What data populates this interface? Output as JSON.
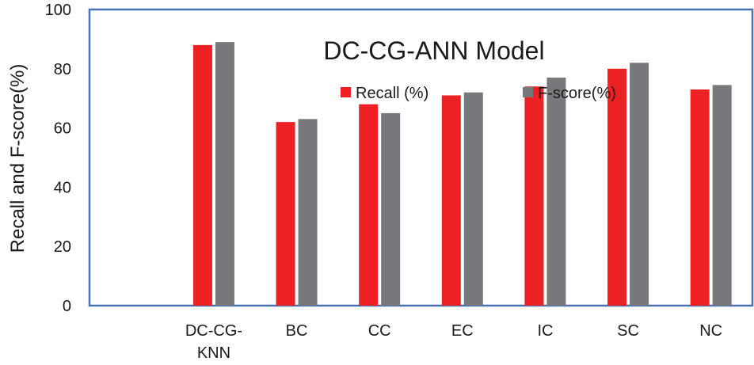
{
  "chart_data": {
    "type": "bar",
    "title": "DC-CG-ANN Model",
    "xlabel": "",
    "ylabel": "Recall and F-score(%)",
    "ylim": [
      0,
      100
    ],
    "yticks": [
      "0",
      "20",
      "40",
      "60",
      "80",
      "100"
    ],
    "categories": [
      "",
      "DC-CG-KNN",
      "BC",
      "CC",
      "EC",
      "IC",
      "SC",
      "NC"
    ],
    "category_lines": [
      [],
      [
        "DC-CG-",
        "KNN"
      ],
      [
        "BC"
      ],
      [
        "CC"
      ],
      [
        "EC"
      ],
      [
        "IC"
      ],
      [
        "SC"
      ],
      [
        "NC"
      ]
    ],
    "series": [
      {
        "name": "Recall (%)",
        "color": "#ed2024",
        "values": [
          null,
          88,
          62,
          68,
          71,
          74,
          80,
          73
        ]
      },
      {
        "name": "F-score(%)",
        "color": "#77787b",
        "values": [
          null,
          89,
          63,
          65,
          72,
          77,
          82,
          74.5
        ]
      }
    ],
    "grid": false,
    "legend_position": "top-center",
    "frame_color": "#4a72b0"
  }
}
